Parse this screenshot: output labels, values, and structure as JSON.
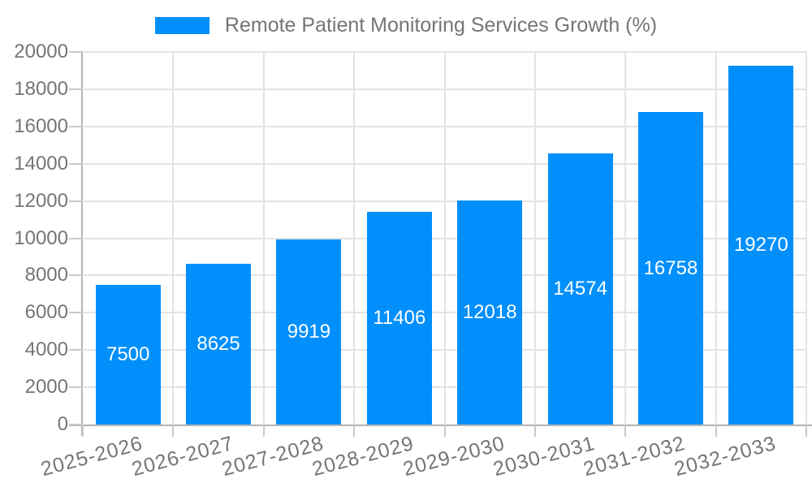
{
  "legend": {
    "items": [
      {
        "label": "Remote Patient Monitoring Services Growth (%)",
        "color": "#008FFB"
      }
    ]
  },
  "chart_data": {
    "type": "bar",
    "title": "Remote Patient Monitoring Services Growth (%)",
    "categories": [
      "2025-2026",
      "2026-2027",
      "2027-2028",
      "2028-2029",
      "2029-2030",
      "2030-2031",
      "2031-2032",
      "2032-2033"
    ],
    "values": [
      7500,
      8625,
      9919,
      11406,
      12018,
      14574,
      16758,
      19270
    ],
    "xlabel": "",
    "ylabel": "",
    "ylim": [
      0,
      20000
    ],
    "ytick_step": 2000,
    "grid": true,
    "legend_position": "top",
    "bar_color": "#008FFB",
    "data_label_color": "#FFFFFF",
    "axis_text_color": "#757575",
    "gridline_color": "#E3E3E3",
    "axis_line_color": "#B3B3B3",
    "background": "#FFFFFF"
  }
}
